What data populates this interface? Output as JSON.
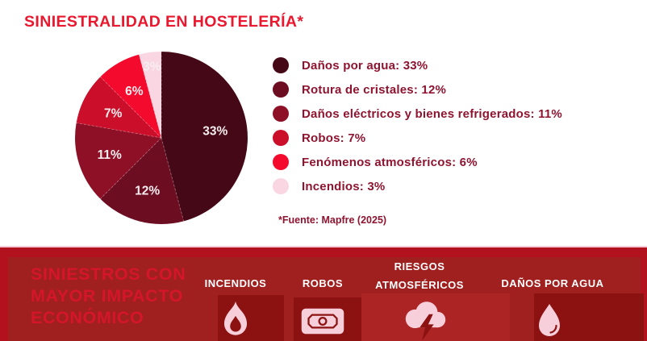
{
  "title": "SINIESTRALIDAD EN HOSTELERÍA*",
  "source_note": "*Fuente: Mapfre (2025)",
  "colors": {
    "title_red": "#e9182e",
    "legend_text": "#8e1430",
    "pie_label": "#f7edf0",
    "banner_edge_red": "#b2121d",
    "banner_panel_red": "#a02020",
    "icon_panel_dark": "#8c1212",
    "icon_panel_light": "#ad2424",
    "banner_heading_red": "#d5152a",
    "icon_pink": "#f7cfdb",
    "divider_pink": "#f3ccd6"
  },
  "chart_data": {
    "type": "pie",
    "title": "SINIESTRALIDAD EN HOSTELERÍA*",
    "unit": "%",
    "direction": "clockwise",
    "start_angle_deg": 0,
    "values_sum": 72,
    "note": "slice angles proportional to value / 72",
    "slices": [
      {
        "label": "Daños por agua",
        "value": 33,
        "display": "33%",
        "color": "#450816"
      },
      {
        "label": "Rotura de cristales",
        "value": 12,
        "display": "12%",
        "color": "#6d0d22"
      },
      {
        "label": "Daños eléctricos y bienes refrigerados",
        "value": 11,
        "display": "11%",
        "color": "#8e1026"
      },
      {
        "label": "Robos",
        "value": 7,
        "display": "7%",
        "color": "#cb0e29"
      },
      {
        "label": "Fenómenos atmosféricos",
        "value": 6,
        "display": "6%",
        "color": "#f30a2c"
      },
      {
        "label": "Incendios",
        "value": 3,
        "display": "3%",
        "color": "#f9d6e2"
      }
    ]
  },
  "legend": {
    "items": [
      {
        "text": "Daños por agua: 33%",
        "color": "#450816"
      },
      {
        "text": "Rotura de cristales: 12%",
        "color": "#6d0d22"
      },
      {
        "text": "Daños eléctricos y bienes refrigerados: 11%",
        "color": "#8e1026"
      },
      {
        "text": "Robos: 7%",
        "color": "#cb0e29"
      },
      {
        "text": "Fenómenos atmosféricos: 6%",
        "color": "#f30a2c"
      },
      {
        "text": "Incendios: 3%",
        "color": "#f9d6e2"
      }
    ]
  },
  "banner": {
    "heading_lines": [
      "SINIESTROS CON",
      "MAYOR IMPACTO",
      "ECONÓMICO"
    ],
    "items": [
      {
        "label_lines": [
          "INCENDIOS"
        ],
        "icon": "flame-icon"
      },
      {
        "label_lines": [
          "ROBOS"
        ],
        "icon": "banknote-icon"
      },
      {
        "label_lines": [
          "RIESGOS",
          "ATMOSFÉRICOS"
        ],
        "icon": "storm-cloud-icon"
      },
      {
        "label_lines": [
          "DAÑOS POR AGUA"
        ],
        "icon": "water-drop-icon"
      }
    ]
  }
}
